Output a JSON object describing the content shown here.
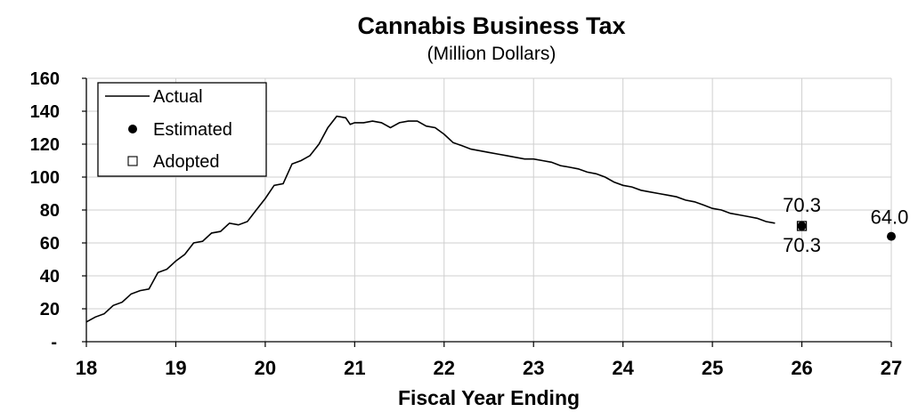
{
  "chart_data": {
    "type": "line",
    "title": "Cannabis Business Tax",
    "subtitle": "(Million Dollars)",
    "xlabel": "Fiscal Year Ending",
    "ylabel": "",
    "xlim": [
      18,
      27
    ],
    "ylim": [
      0,
      160
    ],
    "grid": true,
    "legend_position": "top-left",
    "x_ticks": [
      "18",
      "19",
      "20",
      "21",
      "22",
      "23",
      "24",
      "25",
      "26",
      "27"
    ],
    "y_ticks": [
      "-",
      "20",
      "40",
      "60",
      "80",
      "100",
      "120",
      "140",
      "160"
    ],
    "legend": [
      "Actual",
      "Estimated",
      "Adopted"
    ],
    "series": [
      {
        "name": "Actual",
        "x": [
          18.0,
          18.1,
          18.2,
          18.3,
          18.4,
          18.5,
          18.6,
          18.7,
          18.8,
          18.9,
          19.0,
          19.1,
          19.2,
          19.3,
          19.4,
          19.5,
          19.6,
          19.7,
          19.8,
          19.9,
          20.0,
          20.1,
          20.2,
          20.3,
          20.4,
          20.5,
          20.6,
          20.7,
          20.8,
          20.9,
          20.95,
          21.0,
          21.1,
          21.2,
          21.3,
          21.4,
          21.5,
          21.6,
          21.7,
          21.8,
          21.9,
          22.0,
          22.1,
          22.2,
          22.3,
          22.4,
          22.5,
          22.6,
          22.7,
          22.8,
          22.9,
          23.0,
          23.1,
          23.2,
          23.3,
          23.4,
          23.5,
          23.6,
          23.7,
          23.8,
          23.9,
          24.0,
          24.1,
          24.2,
          24.3,
          24.4,
          24.5,
          24.6,
          24.7,
          24.8,
          24.9,
          25.0,
          25.1,
          25.2,
          25.3,
          25.4,
          25.5,
          25.6,
          25.7
        ],
        "values": [
          12,
          15,
          17,
          22,
          24,
          29,
          31,
          32,
          42,
          44,
          49,
          53,
          60,
          61,
          66,
          67,
          72,
          71,
          73,
          80,
          87,
          95,
          96,
          108,
          110,
          113,
          120,
          130,
          137,
          136,
          132,
          133,
          133,
          134,
          133,
          130,
          133,
          134,
          134,
          131,
          130,
          126,
          121,
          119,
          117,
          116,
          115,
          114,
          113,
          112,
          111,
          111,
          110,
          109,
          107,
          106,
          105,
          103,
          102,
          100,
          97,
          95,
          94,
          92,
          91,
          90,
          89,
          88,
          86,
          85,
          83,
          81,
          80,
          78,
          77,
          76,
          75,
          73,
          72
        ]
      },
      {
        "name": "Estimated",
        "x": [
          26,
          27
        ],
        "values": [
          70.3,
          64.0
        ],
        "labels": [
          "70.3",
          "64.0"
        ]
      },
      {
        "name": "Adopted",
        "x": [
          26
        ],
        "values": [
          70.3
        ],
        "labels": [
          "70.3"
        ]
      }
    ]
  }
}
